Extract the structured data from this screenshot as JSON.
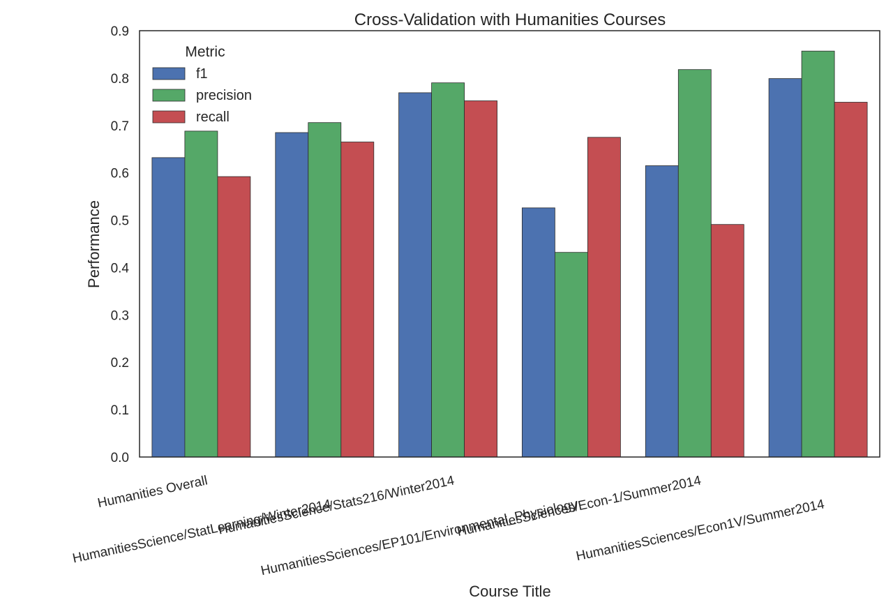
{
  "chart_data": {
    "type": "bar",
    "title": "Cross-Validation with Humanities Courses",
    "xlabel": "Course Title",
    "ylabel": "Performance",
    "ylim": [
      0.0,
      0.9
    ],
    "yticks": [
      "0.0",
      "0.1",
      "0.2",
      "0.3",
      "0.4",
      "0.5",
      "0.6",
      "0.7",
      "0.8",
      "0.9"
    ],
    "grid": false,
    "legend": {
      "title": "Metric",
      "placement": "top-left"
    },
    "categories": [
      "Humanities Overall",
      "HumanitiesScience/StatLearning/Winter2014",
      "HumanitiesScience/Stats216/Winter2014",
      "HumanitiesSciences/EP101/Environmental_Physiology",
      "HumanitiesSciences/Econ-1/Summer2014",
      "HumanitiesSciences/Econ1V/Summer2014"
    ],
    "series": [
      {
        "name": "f1",
        "color": "#4c72b0",
        "values": [
          0.632,
          0.685,
          0.769,
          0.526,
          0.615,
          0.799
        ]
      },
      {
        "name": "precision",
        "color": "#55a868",
        "values": [
          0.688,
          0.706,
          0.79,
          0.432,
          0.818,
          0.857
        ]
      },
      {
        "name": "recall",
        "color": "#c44e52",
        "values": [
          0.592,
          0.665,
          0.752,
          0.675,
          0.491,
          0.749
        ]
      }
    ]
  }
}
